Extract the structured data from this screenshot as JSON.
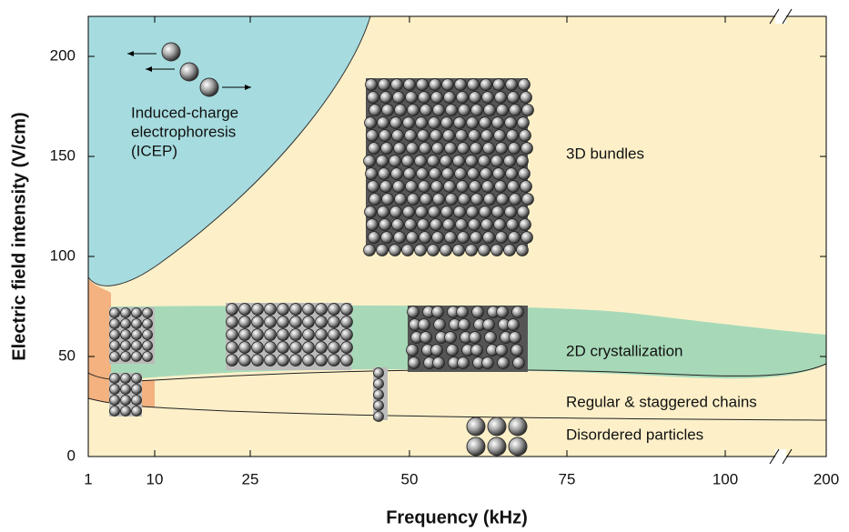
{
  "chart_data": {
    "type": "phase-diagram",
    "xlabel": "Frequency (kHz)",
    "ylabel": "Electric field intensity (V/cm)",
    "xlim": [
      1,
      200
    ],
    "xticks": [
      1,
      10,
      25,
      50,
      75,
      100,
      200
    ],
    "x_break": true,
    "ylim": [
      0,
      220
    ],
    "yticks": [
      0,
      50,
      100,
      150,
      200
    ],
    "regions": [
      {
        "lines": [
          "Induced-charge",
          "electrophoresis",
          "(ICEP)"
        ],
        "color": "#a6dcdf"
      },
      {
        "lines": [
          "3D bundles"
        ],
        "color": "#fdf0c9"
      },
      {
        "lines": [
          "2D crystallization"
        ],
        "color": "#a7d9b8"
      },
      {
        "lines": [
          "Regular & staggered chains"
        ],
        "color": "#f3b27f"
      },
      {
        "lines": [
          "Disordered particles"
        ],
        "color": "#fdf0c9"
      }
    ]
  }
}
